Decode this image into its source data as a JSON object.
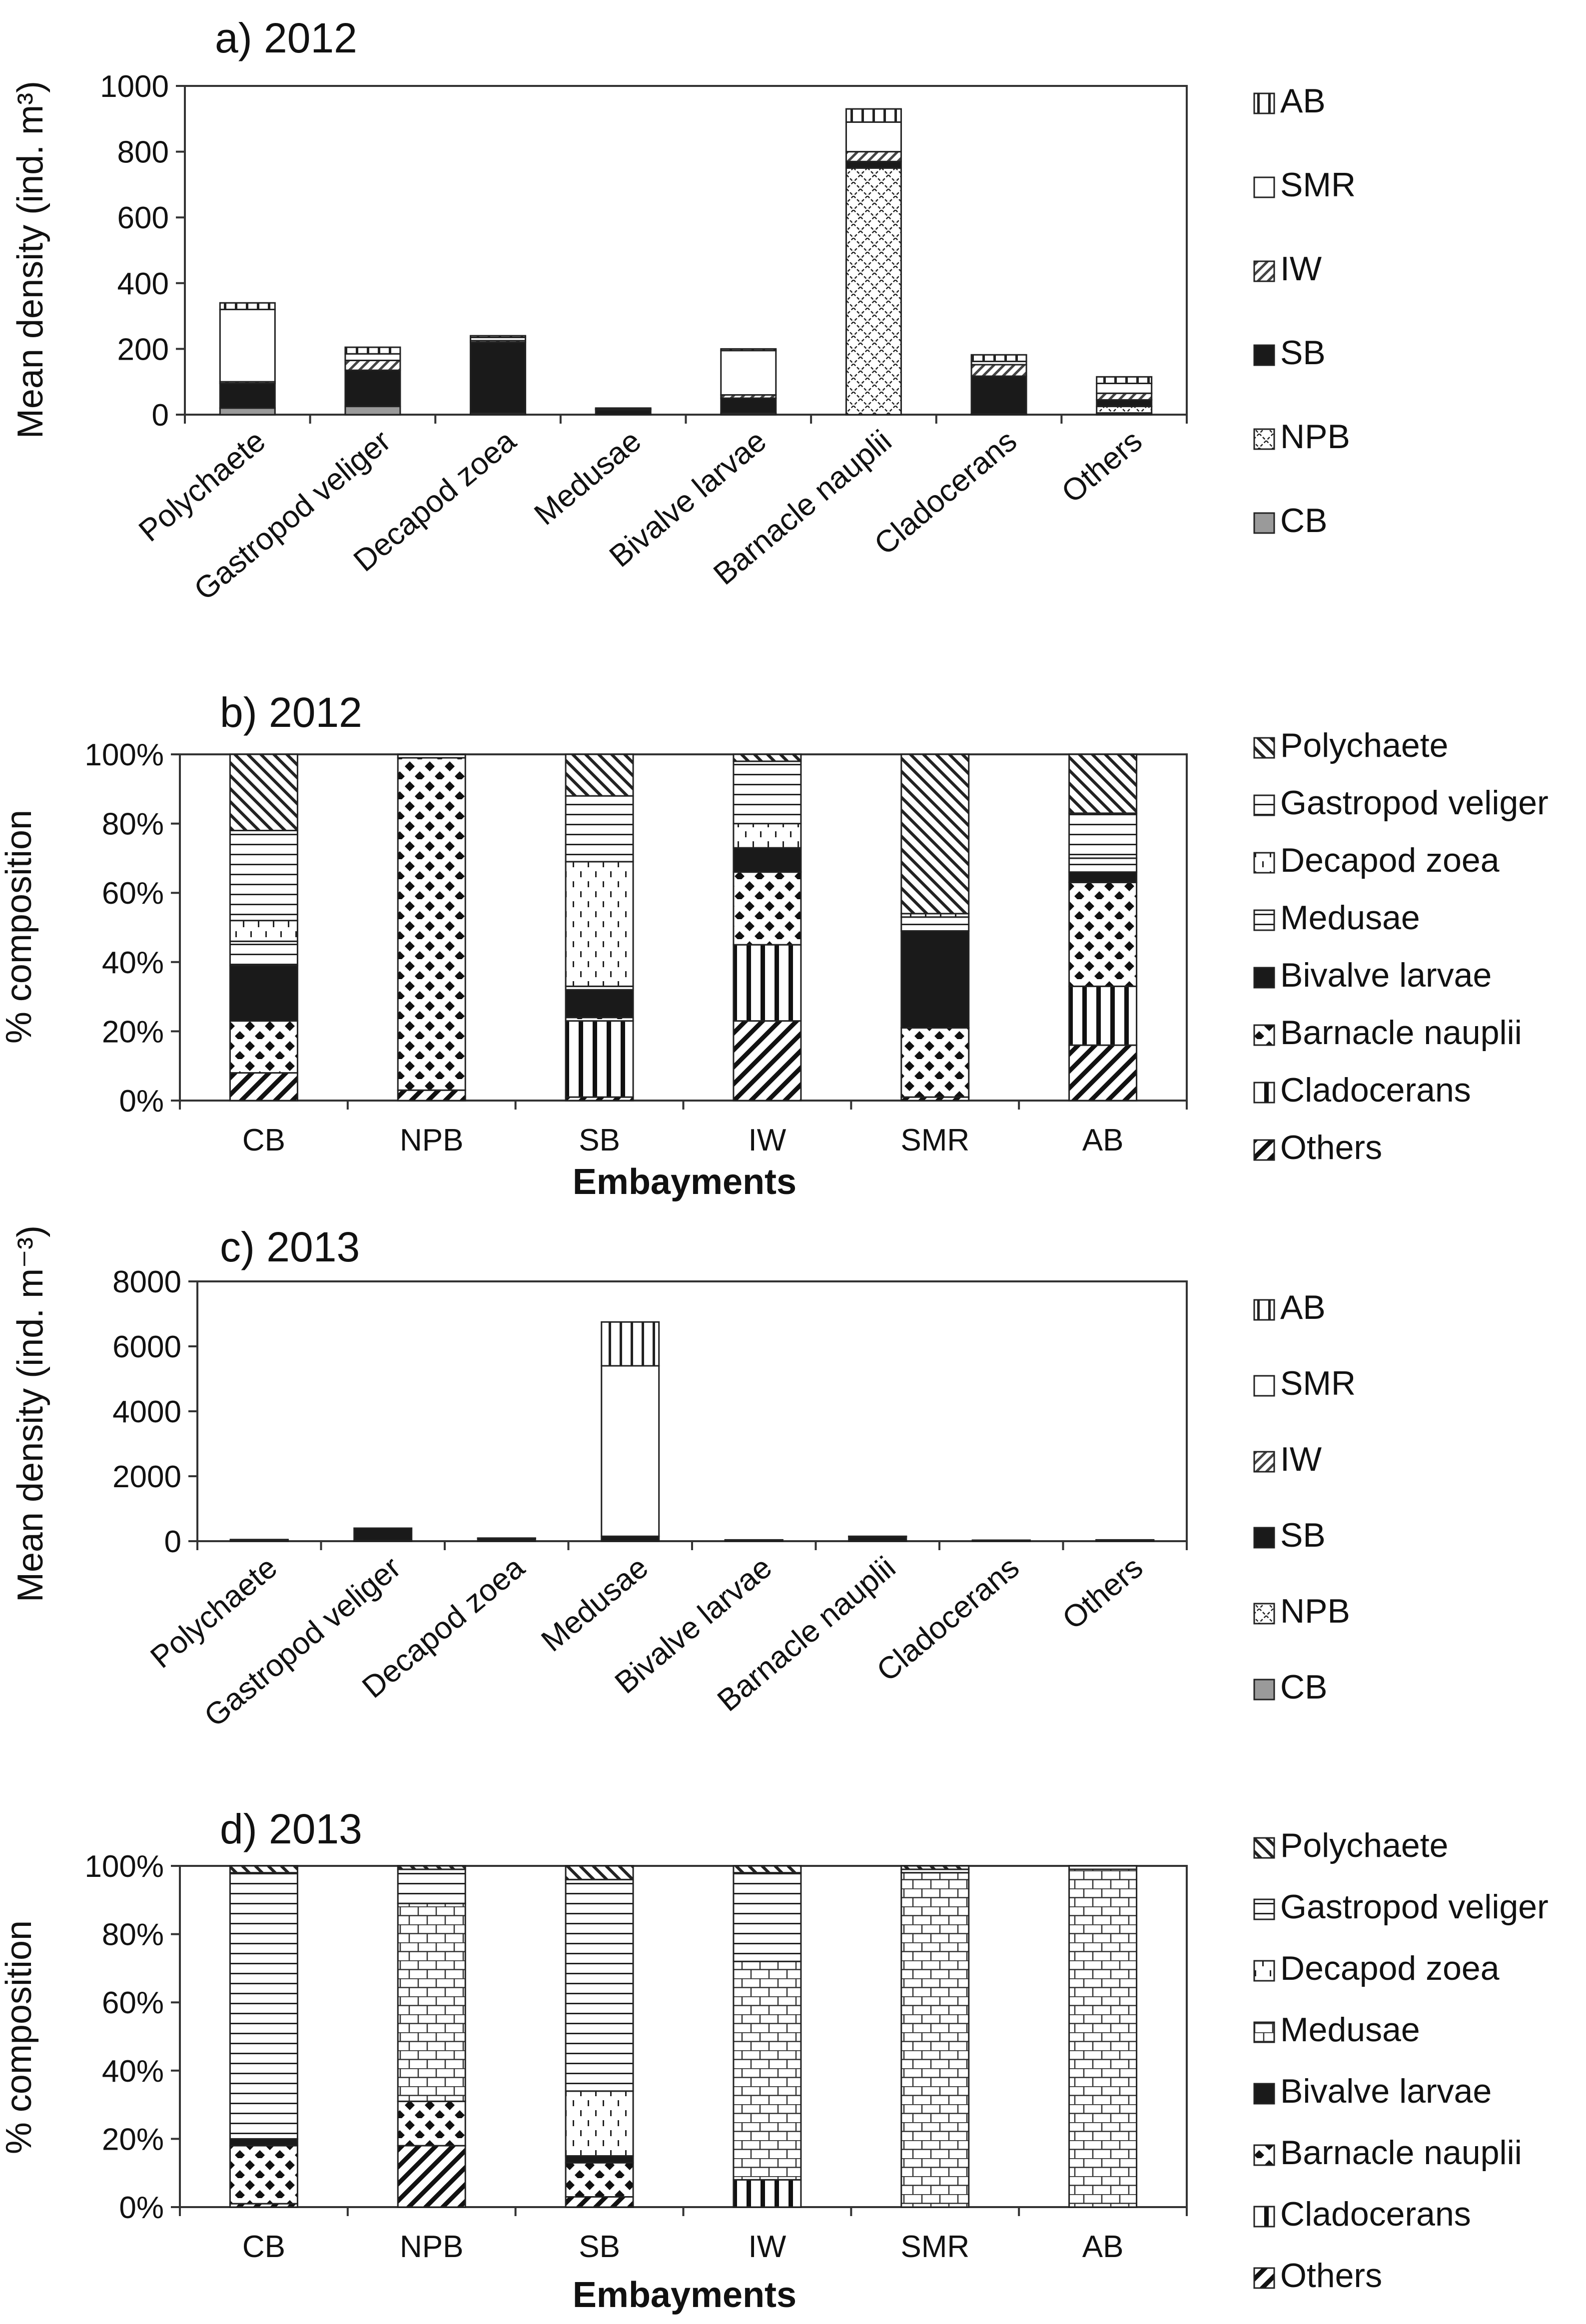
{
  "chart_data": [
    {
      "type": "bar",
      "stacked": true,
      "title": "a) 2012",
      "xlabel": "",
      "ylabel": "Mean density (ind. m³)",
      "ylim": [
        0,
        1000
      ],
      "yticks": [
        "0",
        "200",
        "400",
        "600",
        "800",
        "1000"
      ],
      "categories": [
        "Polychaete",
        "Gastropod veliger",
        "Decapod zoea",
        "Medusae",
        "Bivalve larvae",
        "Barnacle nauplii",
        "Cladocerans",
        "Others"
      ],
      "legend_position": "right",
      "legend": [
        "AB",
        "SMR",
        "IW",
        "SB",
        "NPB",
        "CB"
      ],
      "series": [
        {
          "name": "CB",
          "pattern": "gray",
          "values": [
            20,
            25,
            5,
            0,
            5,
            0,
            2,
            5
          ]
        },
        {
          "name": "NPB",
          "pattern": "xdiag",
          "values": [
            0,
            0,
            0,
            0,
            0,
            750,
            0,
            20
          ]
        },
        {
          "name": "SB",
          "pattern": "black",
          "values": [
            75,
            110,
            215,
            15,
            45,
            20,
            115,
            20
          ]
        },
        {
          "name": "IW",
          "pattern": "dashdiag",
          "values": [
            5,
            30,
            5,
            0,
            10,
            30,
            35,
            20
          ]
        },
        {
          "name": "SMR",
          "pattern": "white",
          "values": [
            220,
            20,
            10,
            2,
            135,
            90,
            10,
            30
          ]
        },
        {
          "name": "AB",
          "pattern": "vbars",
          "values": [
            20,
            20,
            5,
            3,
            5,
            40,
            20,
            20
          ]
        }
      ]
    },
    {
      "type": "bar",
      "stacked": true,
      "title": "b) 2012",
      "xlabel": "Embayments",
      "ylabel": "% composition",
      "ylim": [
        0,
        100
      ],
      "yticks": [
        "0%",
        "20%",
        "40%",
        "60%",
        "80%",
        "100%"
      ],
      "categories": [
        "CB",
        "NPB",
        "SB",
        "IW",
        "SMR",
        "AB"
      ],
      "legend_position": "right",
      "legend": [
        "Polychaete",
        "Gastropod veliger",
        "Decapod zoea",
        "Medusae",
        "Bivalve larvae",
        "Barnacle nauplii",
        "Cladocerans",
        "Others"
      ],
      "series": [
        {
          "name": "Others",
          "pattern": "wdiag",
          "values": [
            8,
            3,
            1,
            23,
            1,
            16
          ]
        },
        {
          "name": "Cladocerans",
          "pattern": "vthick",
          "values": [
            0,
            0,
            22,
            22,
            0,
            17
          ]
        },
        {
          "name": "Barnacle nauplii",
          "pattern": "diamonds",
          "values": [
            15,
            96,
            1,
            21,
            20,
            30
          ]
        },
        {
          "name": "Bivalve larvae",
          "pattern": "black",
          "values": [
            16,
            0,
            8,
            7,
            28,
            3
          ]
        },
        {
          "name": "Medusae",
          "pattern": "hlines",
          "values": [
            7,
            0,
            1,
            0,
            4,
            4
          ]
        },
        {
          "name": "Decapod zoea",
          "pattern": "vdash",
          "values": [
            6,
            0,
            36,
            7,
            1,
            0
          ]
        },
        {
          "name": "Gastropod veliger",
          "pattern": "hlines",
          "values": [
            26,
            1,
            19,
            18,
            0,
            13
          ]
        },
        {
          "name": "Polychaete",
          "pattern": "ndiag",
          "values": [
            22,
            0,
            12,
            2,
            46,
            17
          ]
        }
      ]
    },
    {
      "type": "bar",
      "stacked": true,
      "title": "c) 2013",
      "xlabel": "",
      "ylabel": "Mean density (ind. m⁻³)",
      "ylim": [
        0,
        8000
      ],
      "yticks": [
        "0",
        "2000",
        "4000",
        "6000",
        "8000"
      ],
      "categories": [
        "Polychaete",
        "Gastropod veliger",
        "Decapod zoea",
        "Medusae",
        "Bivalve larvae",
        "Barnacle nauplii",
        "Cladocerans",
        "Others"
      ],
      "legend_position": "right",
      "legend": [
        "AB",
        "SMR",
        "IW",
        "SB",
        "NPB",
        "CB"
      ],
      "series": [
        {
          "name": "CB",
          "pattern": "gray",
          "values": [
            10,
            20,
            10,
            10,
            5,
            10,
            5,
            5
          ]
        },
        {
          "name": "NPB",
          "pattern": "xdiag",
          "values": [
            5,
            0,
            0,
            0,
            0,
            0,
            0,
            0
          ]
        },
        {
          "name": "SB",
          "pattern": "black",
          "values": [
            20,
            380,
            70,
            140,
            20,
            130,
            10,
            20
          ]
        },
        {
          "name": "IW",
          "pattern": "dashdiag",
          "values": [
            5,
            0,
            5,
            0,
            5,
            0,
            5,
            5
          ]
        },
        {
          "name": "SMR",
          "pattern": "white",
          "values": [
            5,
            0,
            5,
            5250,
            5,
            5,
            5,
            5
          ]
        },
        {
          "name": "AB",
          "pattern": "vbars",
          "values": [
            5,
            0,
            5,
            1350,
            5,
            5,
            5,
            5
          ]
        }
      ]
    },
    {
      "type": "bar",
      "stacked": true,
      "title": "d) 2013",
      "xlabel": "Embayments",
      "ylabel": "% composition",
      "ylim": [
        0,
        100
      ],
      "yticks": [
        "0%",
        "20%",
        "40%",
        "60%",
        "80%",
        "100%"
      ],
      "categories": [
        "CB",
        "NPB",
        "SB",
        "IW",
        "SMR",
        "AB"
      ],
      "legend_position": "right",
      "legend": [
        "Polychaete",
        "Gastropod veliger",
        "Decapod zoea",
        "Medusae",
        "Bivalve larvae",
        "Barnacle nauplii",
        "Cladocerans",
        "Others"
      ],
      "series": [
        {
          "name": "Others",
          "pattern": "wdiag",
          "values": [
            1,
            18,
            3,
            0,
            0,
            0
          ]
        },
        {
          "name": "Cladocerans",
          "pattern": "vthick",
          "values": [
            0,
            0,
            0,
            8,
            0,
            0
          ]
        },
        {
          "name": "Barnacle nauplii",
          "pattern": "diamonds",
          "values": [
            17,
            13,
            10,
            0,
            0,
            0
          ]
        },
        {
          "name": "Bivalve larvae",
          "pattern": "black",
          "values": [
            2,
            0,
            2,
            0,
            0,
            0
          ]
        },
        {
          "name": "Decapod zoea",
          "pattern": "vdash",
          "values": [
            0,
            0,
            19,
            0,
            0,
            0
          ]
        },
        {
          "name": "Medusae",
          "pattern": "brick",
          "values": [
            0,
            58,
            0,
            64,
            98,
            99
          ]
        },
        {
          "name": "Gastropod veliger",
          "pattern": "hlines",
          "values": [
            78,
            10,
            62,
            26,
            1,
            1
          ]
        },
        {
          "name": "Polychaete",
          "pattern": "ndiag",
          "values": [
            2,
            1,
            4,
            2,
            1,
            0
          ]
        }
      ]
    }
  ]
}
